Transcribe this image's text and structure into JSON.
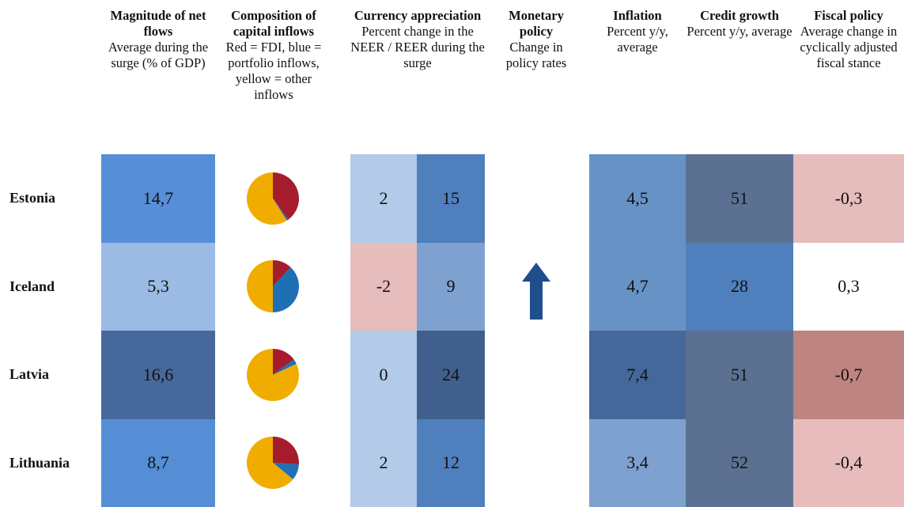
{
  "columns": [
    {
      "title": "Magnitude of net flows",
      "subtitle": "Average during the surge (% of GDP)"
    },
    {
      "title": "Composition of capital inflows",
      "subtitle": "Red = FDI, blue = portfolio inflows, yellow = other inflows"
    },
    {
      "title": "Currency appreciation",
      "subtitle": "Percent change in the NEER / REER during the surge"
    },
    {
      "title": "Monetary policy",
      "subtitle": "Change in policy rates"
    },
    {
      "title": "Inflation",
      "subtitle": "Percent y/y, average"
    },
    {
      "title": "Credit growth",
      "subtitle": "Percent y/y, average"
    },
    {
      "title": "Fiscal policy",
      "subtitle": "Average change in cyclically adjusted fiscal stance"
    }
  ],
  "composition_colors": [
    "#a51d2d",
    "#1f6fb5",
    "#f0ad00"
  ],
  "rows": [
    {
      "country": "Estonia",
      "magnitude": {
        "text": "14,7",
        "color": "#568fd8"
      },
      "composition": [
        40,
        1,
        59
      ],
      "neer": {
        "text": "2",
        "color": "#b3cbe9"
      },
      "reer": {
        "text": "15",
        "color": "#4f80bd"
      },
      "monetary_up": false,
      "inflation": {
        "text": "4,5",
        "color": "#6792c5"
      },
      "credit": {
        "text": "51",
        "color": "#5c7191"
      },
      "fiscal": {
        "text": "-0,3",
        "color": "#e6bdbd"
      }
    },
    {
      "country": "Iceland",
      "magnitude": {
        "text": "5,3",
        "color": "#9bbbe4"
      },
      "composition": [
        12,
        38,
        50
      ],
      "neer": {
        "text": "-2",
        "color": "#e6bcbc"
      },
      "reer": {
        "text": "9",
        "color": "#7fa1d0"
      },
      "monetary_up": true,
      "inflation": {
        "text": "4,7",
        "color": "#6792c5"
      },
      "credit": {
        "text": "28",
        "color": "#4f80bd"
      },
      "fiscal": {
        "text": "0,3",
        "color": "#ffffff"
      }
    },
    {
      "country": "Latvia",
      "magnitude": {
        "text": "16,6",
        "color": "#47689a"
      },
      "composition": [
        15,
        3,
        82
      ],
      "neer": {
        "text": "0",
        "color": "#b3cbe9"
      },
      "reer": {
        "text": "24",
        "color": "#405f8c"
      },
      "monetary_up": false,
      "inflation": {
        "text": "7,4",
        "color": "#45689a"
      },
      "credit": {
        "text": "51",
        "color": "#5c7191"
      },
      "fiscal": {
        "text": "-0,7",
        "color": "#bd8482"
      }
    },
    {
      "country": "Lithuania",
      "magnitude": {
        "text": "8,7",
        "color": "#558ed5"
      },
      "composition": [
        26,
        10,
        64
      ],
      "neer": {
        "text": "2",
        "color": "#b3cbe9"
      },
      "reer": {
        "text": "12",
        "color": "#4f80bd"
      },
      "monetary_up": false,
      "inflation": {
        "text": "3,4",
        "color": "#7fa1cf"
      },
      "credit": {
        "text": "52",
        "color": "#5c7191"
      },
      "fiscal": {
        "text": "-0,4",
        "color": "#e8bcbc"
      }
    }
  ]
}
